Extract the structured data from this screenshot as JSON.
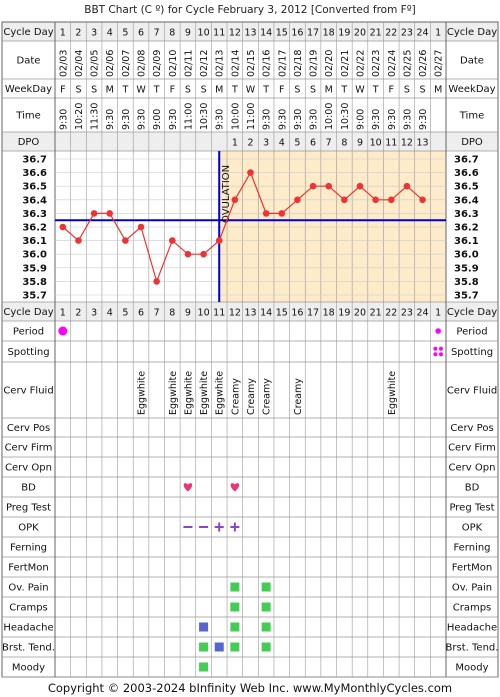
{
  "title": "BBT Chart (C º) for Cycle February 3, 2012  [Converted from Fº]",
  "footer": "Copyright © 2003-2024 bInfinity Web Inc.     www.MyMonthlyCycles.com",
  "labels": {
    "cycle_day": "Cycle Day",
    "date": "Date",
    "weekday": "WeekDay",
    "time": "Time",
    "dpo": "DPO",
    "period": "Period",
    "spotting": "Spotting",
    "cerv_fluid": "Cerv Fluid",
    "cerv_pos": "Cerv Pos",
    "cerv_firm": "Cerv Firm",
    "cerv_opn": "Cerv Opn",
    "bd": "BD",
    "preg_test": "Preg Test",
    "opk": "OPK",
    "ferning": "Ferning",
    "fertmon": "FertMon",
    "ov_pain": "Ov. Pain",
    "cramps": "Cramps",
    "headache": "Headache",
    "brst_tend": "Brst. Tend.",
    "moody": "Moody"
  },
  "colors": {
    "grid": "#999999",
    "cover_line": "#0000cc",
    "temp_line": "#ee3333",
    "temp_point": "#ee3333",
    "luteal_fill": "#fdebc9",
    "follicular_fill": "#ffffff",
    "period": "#ff00ff",
    "bd_heart": "#ee3377",
    "opk_negative": "#8844cc",
    "green_square": "#44cc55",
    "blue_square": "#5566cc"
  },
  "chart_data": {
    "type": "line",
    "cycle_days": [
      "1",
      "2",
      "3",
      "4",
      "5",
      "6",
      "7",
      "8",
      "9",
      "10",
      "11",
      "12",
      "13",
      "14",
      "15",
      "16",
      "17",
      "18",
      "19",
      "20",
      "21",
      "22",
      "23",
      "24",
      "1"
    ],
    "dates": [
      "02/03",
      "02/04",
      "02/05",
      "02/06",
      "02/07",
      "02/08",
      "02/09",
      "02/10",
      "02/11",
      "02/12",
      "02/13",
      "02/14",
      "02/15",
      "02/16",
      "02/17",
      "02/18",
      "02/19",
      "02/20",
      "02/21",
      "02/22",
      "02/23",
      "02/24",
      "02/25",
      "02/26",
      "02/27"
    ],
    "weekdays": [
      "F",
      "S",
      "S",
      "M",
      "T",
      "W",
      "T",
      "F",
      "S",
      "S",
      "M",
      "T",
      "W",
      "T",
      "F",
      "S",
      "S",
      "M",
      "T",
      "W",
      "T",
      "F",
      "S",
      "S",
      "M"
    ],
    "times": [
      "9:30",
      "10:20",
      "11:30",
      "9:30",
      "9:30",
      "9:30",
      "9:00",
      "9:30",
      "11:00",
      "10:30",
      "9:30",
      "10:00",
      "11:00",
      "9:30",
      "9:30",
      "9:30",
      "9:30",
      "10:00",
      "10:30",
      "9:00",
      "9:30",
      "9:30",
      "9:30",
      "9:30",
      ""
    ],
    "dpo": [
      "",
      "",
      "",
      "",
      "",
      "",
      "",
      "",
      "",
      "",
      "",
      "1",
      "2",
      "3",
      "4",
      "5",
      "6",
      "7",
      "8",
      "9",
      "10",
      "11",
      "12",
      "13",
      ""
    ],
    "y_ticks": [
      "36.7",
      "36.6",
      "36.5",
      "36.4",
      "36.3",
      "36.2",
      "36.1",
      "36.0",
      "35.9",
      "35.8",
      "35.7"
    ],
    "ylim": [
      35.7,
      36.7
    ],
    "temperatures": [
      36.2,
      36.1,
      36.3,
      36.3,
      36.1,
      36.2,
      35.8,
      36.1,
      36.0,
      36.0,
      36.1,
      36.4,
      36.6,
      36.3,
      36.3,
      36.4,
      36.5,
      36.5,
      36.4,
      36.5,
      36.4,
      36.4,
      36.5,
      36.4,
      null
    ],
    "coverline": 36.25,
    "ovulation_after_day_index": 10,
    "ovulation_label": "OVULATION",
    "period_days": [
      0,
      24
    ],
    "period_light_days": [
      24
    ],
    "spotting_days": [
      24
    ],
    "cerv_fluid": [
      "",
      "",
      "",
      "",
      "",
      "Eggwhite",
      "",
      "Eggwhite",
      "Eggwhite",
      "Eggwhite",
      "Eggwhite",
      "Creamy",
      "Creamy",
      "Creamy",
      "",
      "Creamy",
      "",
      "",
      "",
      "",
      "",
      "Eggwhite",
      "",
      "",
      ""
    ],
    "bd_days": [
      8,
      11
    ],
    "opk": [
      "",
      "",
      "",
      "",
      "",
      "",
      "",
      "",
      "−",
      "−",
      "+",
      "+",
      "",
      "",
      "",
      "",
      "",
      "",
      "",
      "",
      "",
      "",
      "",
      "",
      ""
    ],
    "ov_pain_days": [
      11,
      13
    ],
    "cramps_days": [
      11,
      13
    ],
    "headache": [
      {
        "day": 9,
        "color": "blue"
      },
      {
        "day": 11,
        "color": "green"
      },
      {
        "day": 13,
        "color": "green"
      }
    ],
    "brst_tend": [
      {
        "day": 9,
        "color": "green"
      },
      {
        "day": 10,
        "color": "blue"
      },
      {
        "day": 11,
        "color": "green"
      },
      {
        "day": 13,
        "color": "green"
      }
    ],
    "moody_days": [
      9
    ]
  }
}
